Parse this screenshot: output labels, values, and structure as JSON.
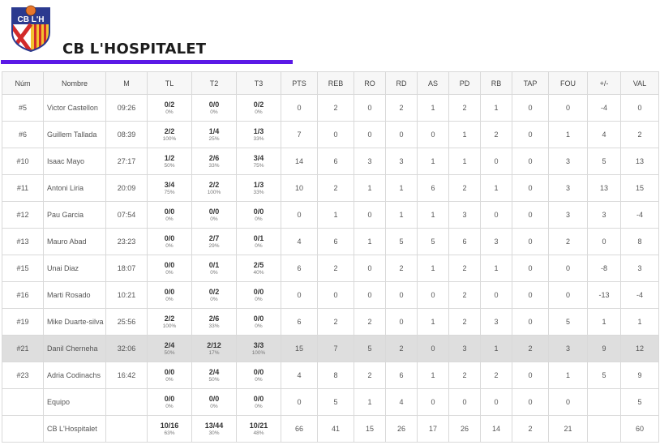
{
  "team": {
    "name": "CB L'HOSPITALET",
    "logo_text": "CB L'H",
    "accent_color": "#5b19e6"
  },
  "columns": [
    "Núm",
    "Nombre",
    "M",
    "TL",
    "T2",
    "T3",
    "PTS",
    "REB",
    "RO",
    "RD",
    "AS",
    "PD",
    "RB",
    "TAP",
    "FOU",
    "+/-",
    "VAL"
  ],
  "rows": [
    {
      "num": "#5",
      "name": "Victor Castellon",
      "min": "09:26",
      "tl": "0/2",
      "tl_pct": "0%",
      "t2": "0/0",
      "t2_pct": "0%",
      "t3": "0/2",
      "t3_pct": "0%",
      "pts": "0",
      "reb": "2",
      "ro": "0",
      "rd": "2",
      "as": "1",
      "pd": "2",
      "rb": "1",
      "tap": "0",
      "fou": "0",
      "pm": "-4",
      "val": "0"
    },
    {
      "num": "#6",
      "name": "Guillem Tallada",
      "min": "08:39",
      "tl": "2/2",
      "tl_pct": "100%",
      "t2": "1/4",
      "t2_pct": "25%",
      "t3": "1/3",
      "t3_pct": "33%",
      "pts": "7",
      "reb": "0",
      "ro": "0",
      "rd": "0",
      "as": "0",
      "pd": "1",
      "rb": "2",
      "tap": "0",
      "fou": "1",
      "pm": "4",
      "val": "2"
    },
    {
      "num": "#10",
      "name": "Isaac Mayo",
      "min": "27:17",
      "tl": "1/2",
      "tl_pct": "50%",
      "t2": "2/6",
      "t2_pct": "33%",
      "t3": "3/4",
      "t3_pct": "75%",
      "pts": "14",
      "reb": "6",
      "ro": "3",
      "rd": "3",
      "as": "1",
      "pd": "1",
      "rb": "0",
      "tap": "0",
      "fou": "3",
      "pm": "5",
      "val": "13"
    },
    {
      "num": "#11",
      "name": "Antoni Liria",
      "min": "20:09",
      "tl": "3/4",
      "tl_pct": "75%",
      "t2": "2/2",
      "t2_pct": "100%",
      "t3": "1/3",
      "t3_pct": "33%",
      "pts": "10",
      "reb": "2",
      "ro": "1",
      "rd": "1",
      "as": "6",
      "pd": "2",
      "rb": "1",
      "tap": "0",
      "fou": "3",
      "pm": "13",
      "val": "15"
    },
    {
      "num": "#12",
      "name": "Pau Garcia",
      "min": "07:54",
      "tl": "0/0",
      "tl_pct": "0%",
      "t2": "0/0",
      "t2_pct": "0%",
      "t3": "0/0",
      "t3_pct": "0%",
      "pts": "0",
      "reb": "1",
      "ro": "0",
      "rd": "1",
      "as": "1",
      "pd": "3",
      "rb": "0",
      "tap": "0",
      "fou": "3",
      "pm": "3",
      "val": "-4"
    },
    {
      "num": "#13",
      "name": "Mauro Abad",
      "min": "23:23",
      "tl": "0/0",
      "tl_pct": "0%",
      "t2": "2/7",
      "t2_pct": "29%",
      "t3": "0/1",
      "t3_pct": "0%",
      "pts": "4",
      "reb": "6",
      "ro": "1",
      "rd": "5",
      "as": "5",
      "pd": "6",
      "rb": "3",
      "tap": "0",
      "fou": "2",
      "pm": "0",
      "val": "8"
    },
    {
      "num": "#15",
      "name": "Unai Diaz",
      "min": "18:07",
      "tl": "0/0",
      "tl_pct": "0%",
      "t2": "0/1",
      "t2_pct": "0%",
      "t3": "2/5",
      "t3_pct": "40%",
      "pts": "6",
      "reb": "2",
      "ro": "0",
      "rd": "2",
      "as": "1",
      "pd": "2",
      "rb": "1",
      "tap": "0",
      "fou": "0",
      "pm": "-8",
      "val": "3"
    },
    {
      "num": "#16",
      "name": "Marti Rosado",
      "min": "10:21",
      "tl": "0/0",
      "tl_pct": "0%",
      "t2": "0/2",
      "t2_pct": "0%",
      "t3": "0/0",
      "t3_pct": "0%",
      "pts": "0",
      "reb": "0",
      "ro": "0",
      "rd": "0",
      "as": "0",
      "pd": "2",
      "rb": "0",
      "tap": "0",
      "fou": "0",
      "pm": "-13",
      "val": "-4"
    },
    {
      "num": "#19",
      "name": "Mike Duarte-silva",
      "min": "25:56",
      "tl": "2/2",
      "tl_pct": "100%",
      "t2": "2/6",
      "t2_pct": "33%",
      "t3": "0/0",
      "t3_pct": "0%",
      "pts": "6",
      "reb": "2",
      "ro": "2",
      "rd": "0",
      "as": "1",
      "pd": "2",
      "rb": "3",
      "tap": "0",
      "fou": "5",
      "pm": "1",
      "val": "1"
    },
    {
      "num": "#21",
      "name": "Danil Cherneha",
      "min": "32:06",
      "tl": "2/4",
      "tl_pct": "50%",
      "t2": "2/12",
      "t2_pct": "17%",
      "t3": "3/3",
      "t3_pct": "100%",
      "pts": "15",
      "reb": "7",
      "ro": "5",
      "rd": "2",
      "as": "0",
      "pd": "3",
      "rb": "1",
      "tap": "2",
      "fou": "3",
      "pm": "9",
      "val": "12",
      "highlight": true
    },
    {
      "num": "#23",
      "name": "Adria Codinachs",
      "min": "16:42",
      "tl": "0/0",
      "tl_pct": "0%",
      "t2": "2/4",
      "t2_pct": "50%",
      "t3": "0/0",
      "t3_pct": "0%",
      "pts": "4",
      "reb": "8",
      "ro": "2",
      "rd": "6",
      "as": "1",
      "pd": "2",
      "rb": "2",
      "tap": "0",
      "fou": "1",
      "pm": "5",
      "val": "9"
    },
    {
      "num": "",
      "name": "Equipo",
      "min": "",
      "tl": "0/0",
      "tl_pct": "0%",
      "t2": "0/0",
      "t2_pct": "0%",
      "t3": "0/0",
      "t3_pct": "0%",
      "pts": "0",
      "reb": "5",
      "ro": "1",
      "rd": "4",
      "as": "0",
      "pd": "0",
      "rb": "0",
      "tap": "0",
      "fou": "0",
      "pm": "",
      "val": "5"
    },
    {
      "num": "",
      "name": "CB L'Hospitalet",
      "min": "",
      "tl": "10/16",
      "tl_pct": "63%",
      "t2": "13/44",
      "t2_pct": "30%",
      "t3": "10/21",
      "t3_pct": "48%",
      "pts": "66",
      "reb": "41",
      "ro": "15",
      "rd": "26",
      "as": "17",
      "pd": "26",
      "rb": "14",
      "tap": "2",
      "fou": "21",
      "pm": "",
      "val": "60"
    }
  ]
}
